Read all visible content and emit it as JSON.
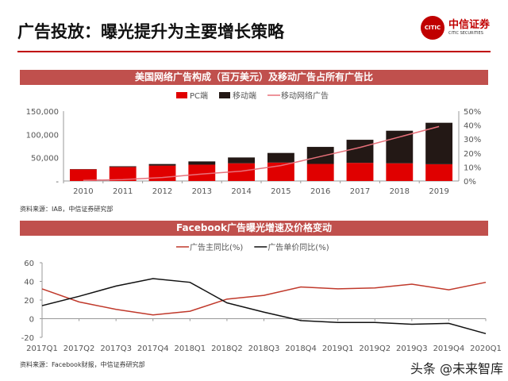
{
  "title": "广告投放：曝光提升为主要增长策略",
  "logo": {
    "mark": "CITIC",
    "cn": "中信证券",
    "en": "CITIC SECURITIES"
  },
  "watermark": "头条 @未来智库",
  "chart_data": [
    {
      "type": "bar",
      "title": "美国网络广告构成（百万美元）及移动广告占所有广告比",
      "categories": [
        "2010",
        "2011",
        "2012",
        "2013",
        "2014",
        "2015",
        "2016",
        "2017",
        "2018",
        "2019"
      ],
      "series": [
        {
          "name": "PC端",
          "kind": "stacked-bar",
          "color": "#e00000",
          "values": [
            25000,
            30000,
            33000,
            35000,
            38000,
            39500,
            36600,
            38900,
            38000,
            36000
          ]
        },
        {
          "name": "移动端",
          "kind": "stacked-bar",
          "color": "#231815",
          "values": [
            600,
            1600,
            3400,
            7000,
            12500,
            20700,
            36600,
            49600,
            69900,
            89000
          ]
        },
        {
          "name": "移动网络广告",
          "kind": "line",
          "axis": "right",
          "color": "#e8707a",
          "values": [
            0.4,
            1,
            2.5,
            5,
            7,
            11,
            17.5,
            24,
            31.5,
            39
          ]
        }
      ],
      "yticks": [
        "-",
        "50,000",
        "100,000",
        "150,000"
      ],
      "ylim": [
        0,
        150000
      ],
      "y2ticks": [
        "0%",
        "10%",
        "20%",
        "30%",
        "40%",
        "50%"
      ],
      "y2lim": [
        0,
        50
      ],
      "legend": "top",
      "source": "资料来源：IAB，中信证券研究部"
    },
    {
      "type": "line",
      "title": "Facebook广告曝光增速及价格变动",
      "categories": [
        "2017Q1",
        "2017Q2",
        "2017Q3",
        "2017Q4",
        "2018Q1",
        "2018Q2",
        "2018Q3",
        "2018Q4",
        "2019Q1",
        "2019Q2",
        "2019Q3",
        "2019Q4",
        "2020Q1"
      ],
      "series": [
        {
          "name": "广告主同比(%)",
          "color": "#c0392b",
          "values": [
            32,
            18,
            10,
            4,
            8,
            21,
            25,
            34,
            32,
            33,
            37,
            31,
            39
          ]
        },
        {
          "name": "广告单价同比(%)",
          "color": "#111111",
          "values": [
            14,
            24,
            35,
            43,
            39,
            17,
            7,
            -2,
            -4,
            -4,
            -6,
            -5,
            -16
          ]
        }
      ],
      "yticks": [
        "-20",
        "0",
        "20",
        "40",
        "60"
      ],
      "ylim": [
        -20,
        60
      ],
      "legend": "top",
      "source": "资料来源：Facebook财报，中信证券研究部"
    }
  ]
}
